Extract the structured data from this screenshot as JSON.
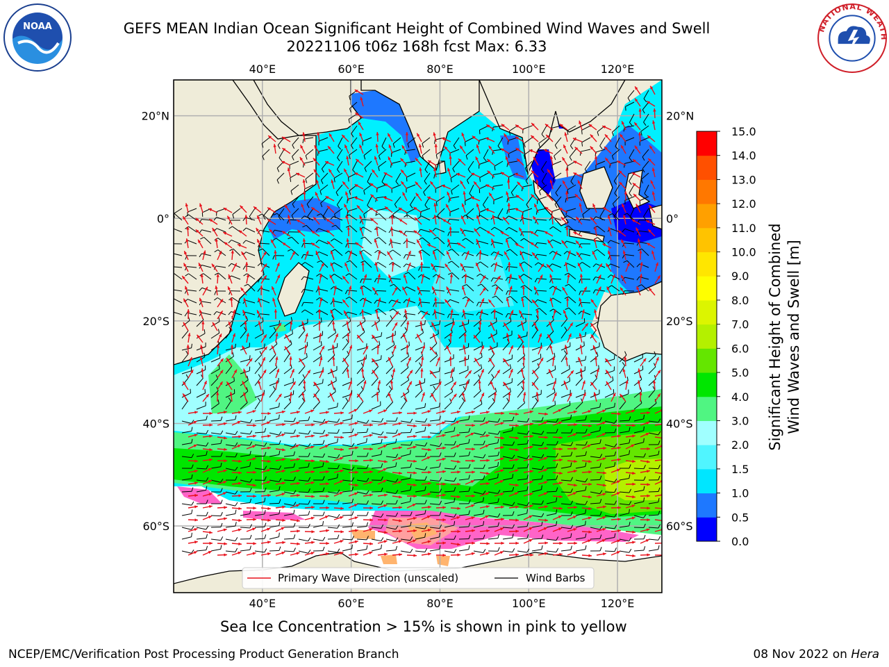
{
  "title": {
    "line1": "GEFS MEAN Indian Ocean Significant Height of Combined Wind Waves and Swell",
    "line2": "20221106 t06z 168h fcst   Max: 6.33"
  },
  "logos": {
    "left": "NOAA",
    "right_text": "NATIONAL WEATHER SERVICE"
  },
  "map": {
    "lon_ticks": [
      "40°E",
      "60°E",
      "80°E",
      "100°E",
      "120°E"
    ],
    "lat_ticks": [
      "20°N",
      "0°",
      "20°S",
      "40°S",
      "60°S"
    ],
    "lon_values": [
      40,
      60,
      80,
      100,
      120
    ],
    "lat_values": [
      20,
      0,
      -20,
      -40,
      -60
    ],
    "lon_range": [
      20,
      130
    ],
    "lat_range": [
      -73,
      27
    ],
    "legend": {
      "wave_label": "Primary Wave Direction (unscaled)",
      "barb_label": "Wind Barbs"
    },
    "colors": {
      "land": "#efecd9",
      "arrow": "#e8101a",
      "barb": "#000000"
    }
  },
  "colorbar": {
    "tick_labels": [
      "0.0",
      "0.5",
      "1.0",
      "1.5",
      "2.0",
      "3.0",
      "4.0",
      "5.0",
      "6.0",
      "7.0",
      "8.0",
      "9.0",
      "10.0",
      "11.0",
      "12.0",
      "13.0",
      "14.0",
      "15.0"
    ],
    "colors": [
      "#0000ff",
      "#1e78ff",
      "#00e6ff",
      "#50f5ff",
      "#a0ffff",
      "#50f582",
      "#00e600",
      "#64e600",
      "#b4f000",
      "#dcf500",
      "#ffff00",
      "#ffe600",
      "#ffc300",
      "#ffa000",
      "#ff7800",
      "#ff5000",
      "#ff0000"
    ],
    "label_line1": "Significant Height of Combined",
    "label_line2": "Wind Waves and Swell [m]"
  },
  "subtitle": "Sea Ice Concentration > 15% is shown in pink to yellow",
  "footer": {
    "left": "NCEP/EMC/Verification Post Processing Product Generation Branch",
    "right_date": "08 Nov 2022 on ",
    "right_machine": "Hera"
  }
}
